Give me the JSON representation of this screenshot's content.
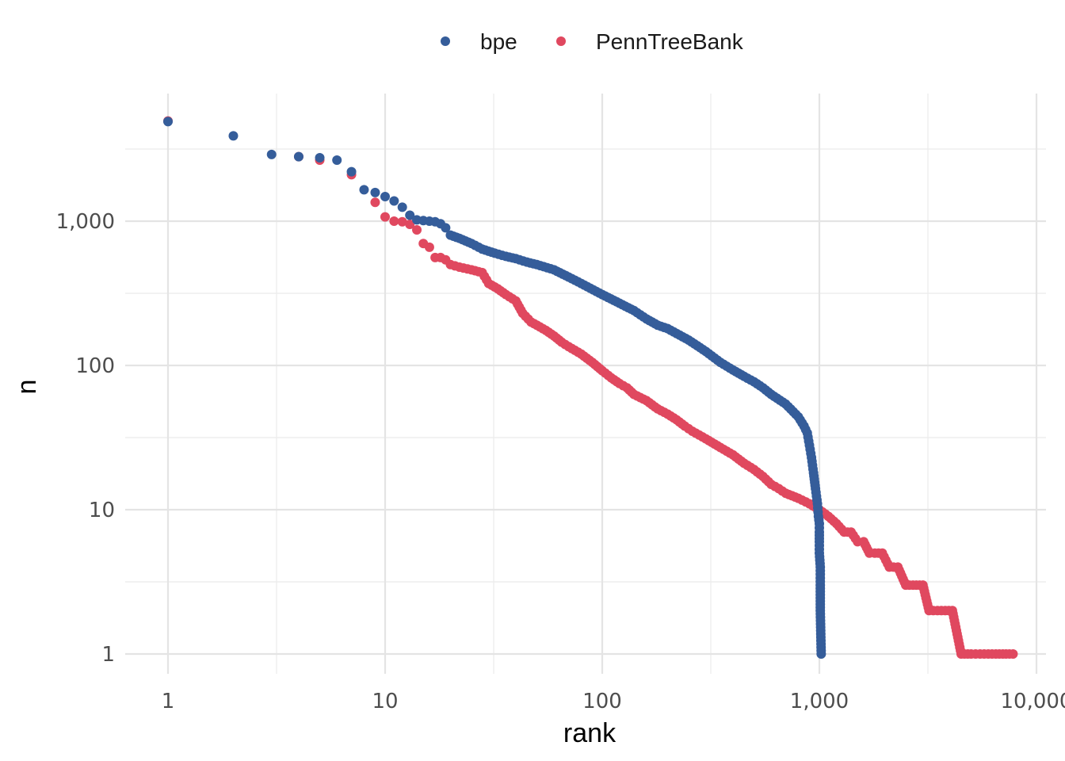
{
  "chart_data": {
    "type": "scatter",
    "title": "",
    "xlabel": "rank",
    "ylabel": "n",
    "xscale": "log10",
    "yscale": "log10",
    "xlim": [
      0.7,
      9500
    ],
    "ylim": [
      0.85,
      7000
    ],
    "grid": true,
    "legend_position": "top",
    "xticks": [
      1,
      10,
      100,
      1000,
      10000
    ],
    "xtick_labels": [
      "1",
      "10",
      "100",
      "1,000",
      "10,000"
    ],
    "yticks": [
      1,
      10,
      100,
      1000
    ],
    "ytick_labels": [
      "1",
      "10",
      "100",
      "1,000"
    ],
    "series": [
      {
        "name": "bpe",
        "color": "#355d9a",
        "points": [
          [
            1,
            4900
          ],
          [
            2,
            3900
          ],
          [
            3,
            2900
          ],
          [
            4,
            2800
          ],
          [
            5,
            2750
          ],
          [
            6,
            2650
          ],
          [
            7,
            2200
          ],
          [
            8,
            1650
          ],
          [
            9,
            1580
          ],
          [
            10,
            1480
          ],
          [
            11,
            1380
          ],
          [
            12,
            1250
          ],
          [
            13,
            1100
          ],
          [
            14,
            1020
          ],
          [
            15,
            1010
          ],
          [
            16,
            1000
          ],
          [
            17,
            990
          ],
          [
            18,
            960
          ],
          [
            19,
            900
          ],
          [
            20,
            800
          ],
          [
            22,
            760
          ],
          [
            25,
            700
          ],
          [
            28,
            640
          ],
          [
            32,
            600
          ],
          [
            36,
            570
          ],
          [
            40,
            550
          ],
          [
            45,
            520
          ],
          [
            50,
            500
          ],
          [
            60,
            460
          ],
          [
            70,
            410
          ],
          [
            80,
            370
          ],
          [
            100,
            310
          ],
          [
            120,
            270
          ],
          [
            140,
            240
          ],
          [
            160,
            210
          ],
          [
            180,
            190
          ],
          [
            200,
            180
          ],
          [
            250,
            150
          ],
          [
            300,
            125
          ],
          [
            350,
            105
          ],
          [
            400,
            93
          ],
          [
            450,
            84
          ],
          [
            500,
            77
          ],
          [
            550,
            70
          ],
          [
            600,
            63
          ],
          [
            700,
            54
          ],
          [
            800,
            44
          ],
          [
            850,
            38
          ],
          [
            880,
            34
          ],
          [
            900,
            28
          ],
          [
            920,
            23
          ],
          [
            940,
            18
          ],
          [
            960,
            14
          ],
          [
            980,
            11
          ],
          [
            990,
            9
          ],
          [
            1000,
            8
          ],
          [
            1000,
            7
          ],
          [
            1000,
            6
          ],
          [
            1000,
            5
          ],
          [
            1010,
            4
          ],
          [
            1010,
            3
          ],
          [
            1010,
            2
          ],
          [
            1020,
            1
          ]
        ]
      },
      {
        "name": "PennTreeBank",
        "color": "#e0485f",
        "points": [
          [
            1,
            4950
          ],
          [
            4,
            2800
          ],
          [
            5,
            2650
          ],
          [
            7,
            2100
          ],
          [
            9,
            1350
          ],
          [
            10,
            1070
          ],
          [
            11,
            1000
          ],
          [
            12,
            990
          ],
          [
            13,
            950
          ],
          [
            14,
            870
          ],
          [
            15,
            700
          ],
          [
            16,
            660
          ],
          [
            17,
            560
          ],
          [
            18,
            560
          ],
          [
            19,
            540
          ],
          [
            20,
            500
          ],
          [
            22,
            480
          ],
          [
            25,
            460
          ],
          [
            28,
            440
          ],
          [
            30,
            370
          ],
          [
            33,
            340
          ],
          [
            36,
            310
          ],
          [
            40,
            280
          ],
          [
            43,
            230
          ],
          [
            47,
            200
          ],
          [
            50,
            190
          ],
          [
            55,
            175
          ],
          [
            60,
            160
          ],
          [
            65,
            145
          ],
          [
            70,
            135
          ],
          [
            80,
            120
          ],
          [
            90,
            105
          ],
          [
            100,
            92
          ],
          [
            110,
            82
          ],
          [
            120,
            75
          ],
          [
            130,
            70
          ],
          [
            140,
            63
          ],
          [
            160,
            57
          ],
          [
            180,
            50
          ],
          [
            200,
            46
          ],
          [
            220,
            42
          ],
          [
            240,
            38
          ],
          [
            260,
            35
          ],
          [
            300,
            31
          ],
          [
            350,
            27
          ],
          [
            400,
            24
          ],
          [
            450,
            21
          ],
          [
            500,
            19
          ],
          [
            550,
            17
          ],
          [
            600,
            15
          ],
          [
            650,
            14
          ],
          [
            700,
            13
          ],
          [
            800,
            12
          ],
          [
            900,
            11
          ],
          [
            1000,
            10
          ],
          [
            1100,
            9
          ],
          [
            1200,
            8
          ],
          [
            1300,
            7
          ],
          [
            1400,
            7
          ],
          [
            1500,
            6
          ],
          [
            1600,
            6
          ],
          [
            1700,
            5
          ],
          [
            1800,
            5
          ],
          [
            1950,
            5
          ],
          [
            2100,
            4
          ],
          [
            2300,
            4
          ],
          [
            2500,
            3
          ],
          [
            2700,
            3
          ],
          [
            3000,
            3
          ],
          [
            3200,
            2
          ],
          [
            3500,
            2
          ],
          [
            3800,
            2
          ],
          [
            4100,
            2
          ],
          [
            4500,
            1
          ],
          [
            5000,
            1
          ],
          [
            5500,
            1
          ],
          [
            6000,
            1
          ],
          [
            6500,
            1
          ],
          [
            7000,
            1
          ],
          [
            7500,
            1
          ],
          [
            7800,
            1
          ]
        ]
      }
    ]
  }
}
